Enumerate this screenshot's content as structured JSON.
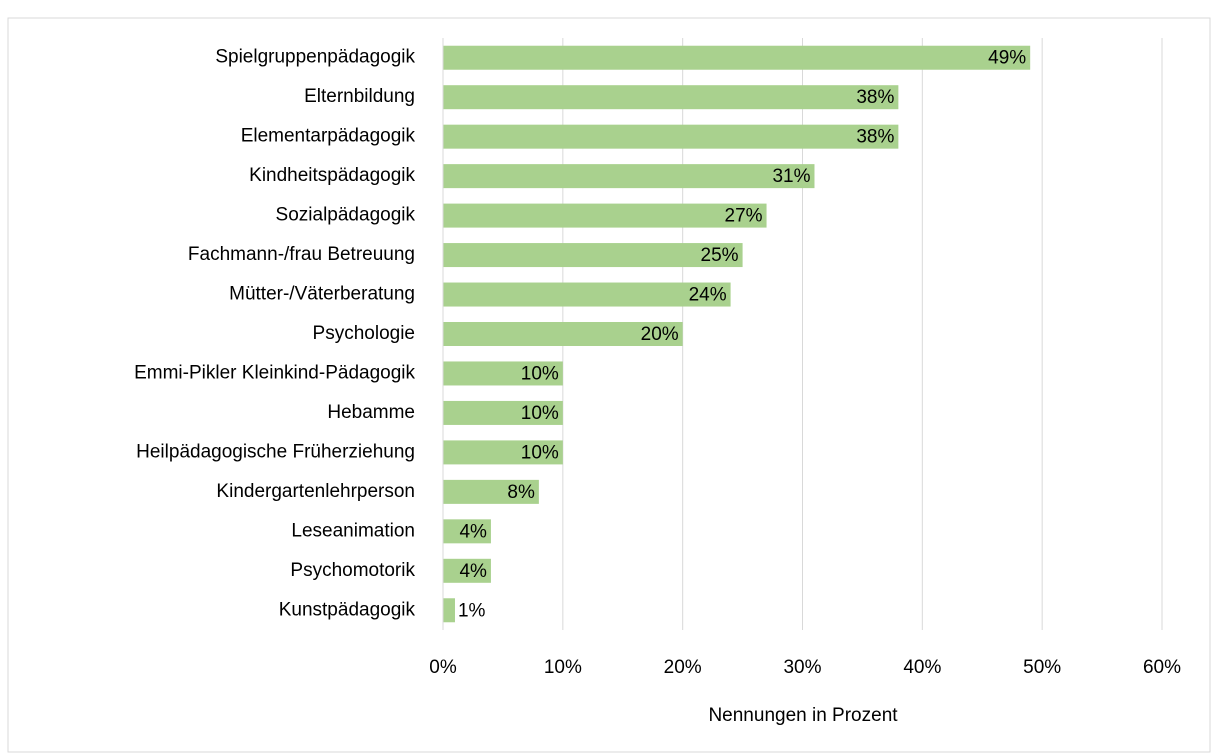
{
  "chart_data": {
    "type": "barh",
    "categories": [
      "Spielgruppenpädagogik",
      "Elternbildung",
      "Elementarpädagogik",
      "Kindheitspädagogik",
      "Sozialpädagogik",
      "Fachmann-/frau Betreuung",
      "Mütter-/Väterberatung",
      "Psychologie",
      "Emmi-Pikler Kleinkind-Pädagogik",
      "Hebamme",
      "Heilpädagogische Früherziehung",
      "Kindergartenlehrperson",
      "Leseanimation",
      "Psychomotorik",
      "Kunstpädagogik"
    ],
    "values": [
      49,
      38,
      38,
      31,
      27,
      25,
      24,
      20,
      10,
      10,
      10,
      8,
      4,
      4,
      1
    ],
    "value_labels": [
      "49%",
      "38%",
      "38%",
      "31%",
      "27%",
      "25%",
      "24%",
      "20%",
      "10%",
      "10%",
      "10%",
      "8%",
      "4%",
      "4%",
      "1%"
    ],
    "color": "#a9d18e",
    "xlabel": "Nennungen in Prozent",
    "xlim": [
      0,
      60
    ],
    "xticks": [
      {
        "value": 0,
        "label": "0%"
      },
      {
        "value": 10,
        "label": "10%"
      },
      {
        "value": 20,
        "label": "20%"
      },
      {
        "value": 30,
        "label": "30%"
      },
      {
        "value": 40,
        "label": "40%"
      },
      {
        "value": 50,
        "label": "50%"
      },
      {
        "value": 60,
        "label": "60%"
      }
    ],
    "grid": true
  }
}
